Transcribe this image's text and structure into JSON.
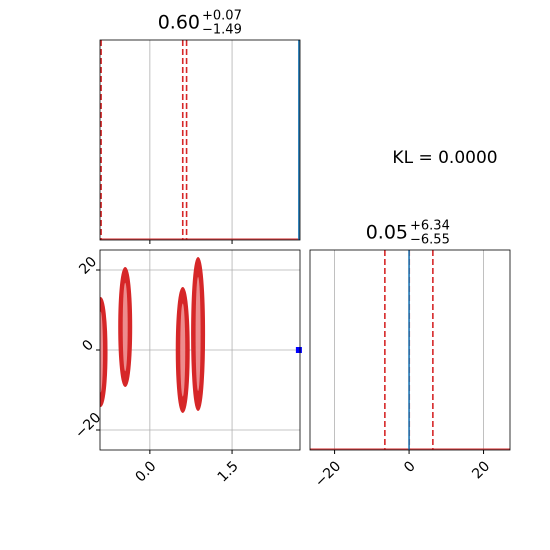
{
  "chart_data": {
    "type": "corner",
    "annotation": "KL = 0.0000",
    "grid": true,
    "quantile_color": "#d62728",
    "truth_color": "#1f77b4",
    "params": [
      {
        "title": "0.60",
        "title_sup": "+0.07",
        "title_sub": "−1.49",
        "xlim": [
          -0.91,
          2.74
        ],
        "xticks": [
          {
            "value": 0,
            "label": "0.0"
          },
          {
            "value": 1.5,
            "label": "1.5"
          }
        ],
        "quantiles": [
          -0.89,
          0.6,
          0.67
        ],
        "truth": 2.72
      },
      {
        "title": "0.05",
        "title_sup": "+6.34",
        "title_sub": "−6.55",
        "xlim": [
          -26.6,
          27.1
        ],
        "xticks": [
          {
            "value": -20,
            "label": "−20"
          },
          0,
          20
        ],
        "quantiles": [
          -6.5,
          0.05,
          6.39
        ],
        "truth": 0
      }
    ],
    "joint": {
      "ylim": [
        -25,
        25
      ],
      "yticks": [
        {
          "value": -20,
          "label": "−20"
        },
        0,
        20
      ],
      "color": "#d62728",
      "cluster_x": [
        -0.9,
        -0.45,
        0.6,
        0.88
      ],
      "cluster_y_low": [
        -14,
        -9,
        -15.5,
        -15
      ],
      "cluster_y_high": [
        13,
        20.5,
        15.5,
        23
      ]
    }
  }
}
